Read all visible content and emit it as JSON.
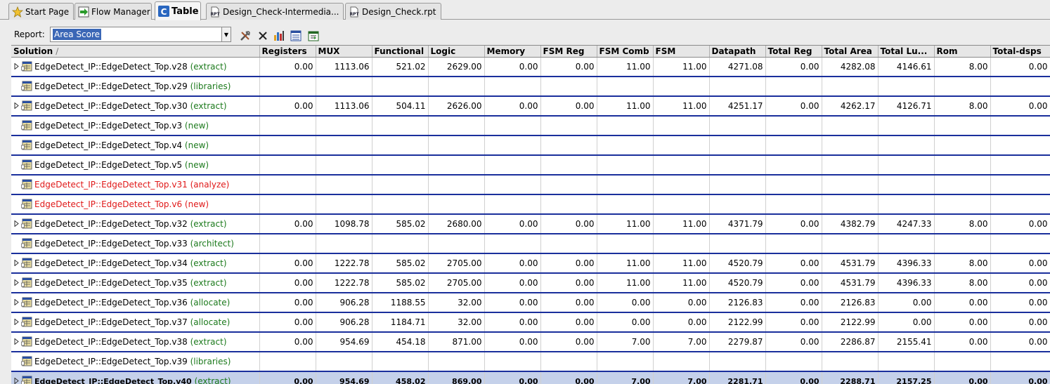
{
  "tabs": [
    {
      "label": "Start Page",
      "icon": "star-icon",
      "active": false
    },
    {
      "label": "Flow Manager",
      "icon": "flow-icon",
      "active": false
    },
    {
      "label": "Table",
      "icon": "table-icon",
      "active": true
    },
    {
      "label": "Design_Check-Intermedia...",
      "icon": "rpt-file-icon",
      "active": false
    },
    {
      "label": "Design_Check.rpt",
      "icon": "rpt-file-icon",
      "active": false
    }
  ],
  "report": {
    "label": "Report:",
    "value": "Area Score"
  },
  "toolbar": {
    "icons": [
      "configure-icon",
      "delete-icon",
      "bar-chart-icon",
      "column-chart-icon",
      "export-table-icon"
    ]
  },
  "table": {
    "columns": [
      "Solution",
      "Registers",
      "MUX",
      "Functional",
      "Logic",
      "Memory",
      "FSM Reg",
      "FSM Comb",
      "FSM",
      "Datapath",
      "Total Reg",
      "Total Area",
      "Total Lu...",
      "Rom",
      "Total-dsps"
    ],
    "rows": [
      {
        "name": "EdgeDetect_IP::EdgeDetect_Top.v28",
        "stage": "(extract)",
        "expandable": true,
        "status": "ok",
        "values": [
          "0.00",
          "1113.06",
          "521.02",
          "2629.00",
          "0.00",
          "0.00",
          "11.00",
          "11.00",
          "4271.08",
          "0.00",
          "4282.08",
          "4146.61",
          "8.00",
          "0.00"
        ]
      },
      {
        "name": "EdgeDetect_IP::EdgeDetect_Top.v29",
        "stage": "(libraries)",
        "expandable": false,
        "status": "ok",
        "values": []
      },
      {
        "name": "EdgeDetect_IP::EdgeDetect_Top.v30",
        "stage": "(extract)",
        "expandable": true,
        "status": "ok",
        "values": [
          "0.00",
          "1113.06",
          "504.11",
          "2626.00",
          "0.00",
          "0.00",
          "11.00",
          "11.00",
          "4251.17",
          "0.00",
          "4262.17",
          "4126.71",
          "8.00",
          "0.00"
        ]
      },
      {
        "name": "EdgeDetect_IP::EdgeDetect_Top.v3",
        "stage": "(new)",
        "expandable": false,
        "status": "ok",
        "values": []
      },
      {
        "name": "EdgeDetect_IP::EdgeDetect_Top.v4",
        "stage": "(new)",
        "expandable": false,
        "status": "ok",
        "values": []
      },
      {
        "name": "EdgeDetect_IP::EdgeDetect_Top.v5",
        "stage": "(new)",
        "expandable": false,
        "status": "ok",
        "values": []
      },
      {
        "name": "EdgeDetect_IP::EdgeDetect_Top.v31",
        "stage": "(analyze)",
        "expandable": false,
        "status": "error",
        "values": []
      },
      {
        "name": "EdgeDetect_IP::EdgeDetect_Top.v6",
        "stage": "(new)",
        "expandable": false,
        "status": "error",
        "values": []
      },
      {
        "name": "EdgeDetect_IP::EdgeDetect_Top.v32",
        "stage": "(extract)",
        "expandable": true,
        "status": "ok",
        "values": [
          "0.00",
          "1098.78",
          "585.02",
          "2680.00",
          "0.00",
          "0.00",
          "11.00",
          "11.00",
          "4371.79",
          "0.00",
          "4382.79",
          "4247.33",
          "8.00",
          "0.00"
        ]
      },
      {
        "name": "EdgeDetect_IP::EdgeDetect_Top.v33",
        "stage": "(architect)",
        "expandable": false,
        "status": "ok",
        "values": []
      },
      {
        "name": "EdgeDetect_IP::EdgeDetect_Top.v34",
        "stage": "(extract)",
        "expandable": true,
        "status": "ok",
        "values": [
          "0.00",
          "1222.78",
          "585.02",
          "2705.00",
          "0.00",
          "0.00",
          "11.00",
          "11.00",
          "4520.79",
          "0.00",
          "4531.79",
          "4396.33",
          "8.00",
          "0.00"
        ]
      },
      {
        "name": "EdgeDetect_IP::EdgeDetect_Top.v35",
        "stage": "(extract)",
        "expandable": true,
        "status": "ok",
        "values": [
          "0.00",
          "1222.78",
          "585.02",
          "2705.00",
          "0.00",
          "0.00",
          "11.00",
          "11.00",
          "4520.79",
          "0.00",
          "4531.79",
          "4396.33",
          "8.00",
          "0.00"
        ]
      },
      {
        "name": "EdgeDetect_IP::EdgeDetect_Top.v36",
        "stage": "(allocate)",
        "expandable": true,
        "status": "ok",
        "values": [
          "0.00",
          "906.28",
          "1188.55",
          "32.00",
          "0.00",
          "0.00",
          "0.00",
          "0.00",
          "2126.83",
          "0.00",
          "2126.83",
          "0.00",
          "0.00",
          "0.00"
        ]
      },
      {
        "name": "EdgeDetect_IP::EdgeDetect_Top.v37",
        "stage": "(allocate)",
        "expandable": true,
        "status": "ok",
        "values": [
          "0.00",
          "906.28",
          "1184.71",
          "32.00",
          "0.00",
          "0.00",
          "0.00",
          "0.00",
          "2122.99",
          "0.00",
          "2122.99",
          "0.00",
          "0.00",
          "0.00"
        ]
      },
      {
        "name": "EdgeDetect_IP::EdgeDetect_Top.v38",
        "stage": "(extract)",
        "expandable": true,
        "status": "ok",
        "values": [
          "0.00",
          "954.69",
          "454.18",
          "871.00",
          "0.00",
          "0.00",
          "7.00",
          "7.00",
          "2279.87",
          "0.00",
          "2286.87",
          "2155.41",
          "0.00",
          "0.00"
        ]
      },
      {
        "name": "EdgeDetect_IP::EdgeDetect_Top.v39",
        "stage": "(libraries)",
        "expandable": false,
        "status": "ok",
        "values": []
      },
      {
        "name": "EdgeDetect_IP::EdgeDetect_Top.v40",
        "stage": "(extract)",
        "expandable": true,
        "status": "ok",
        "selected": true,
        "values": [
          "0.00",
          "954.69",
          "458.02",
          "869.00",
          "0.00",
          "0.00",
          "7.00",
          "7.00",
          "2281.71",
          "0.00",
          "2288.71",
          "2157.25",
          "0.00",
          "0.00"
        ]
      }
    ]
  },
  "colors": {
    "stage_ok": "#1c7a1c",
    "error": "#e01818",
    "row_divider": "#1a2f9c",
    "selection": "#c5d1ea",
    "report_highlight": "#3b67b6"
  }
}
